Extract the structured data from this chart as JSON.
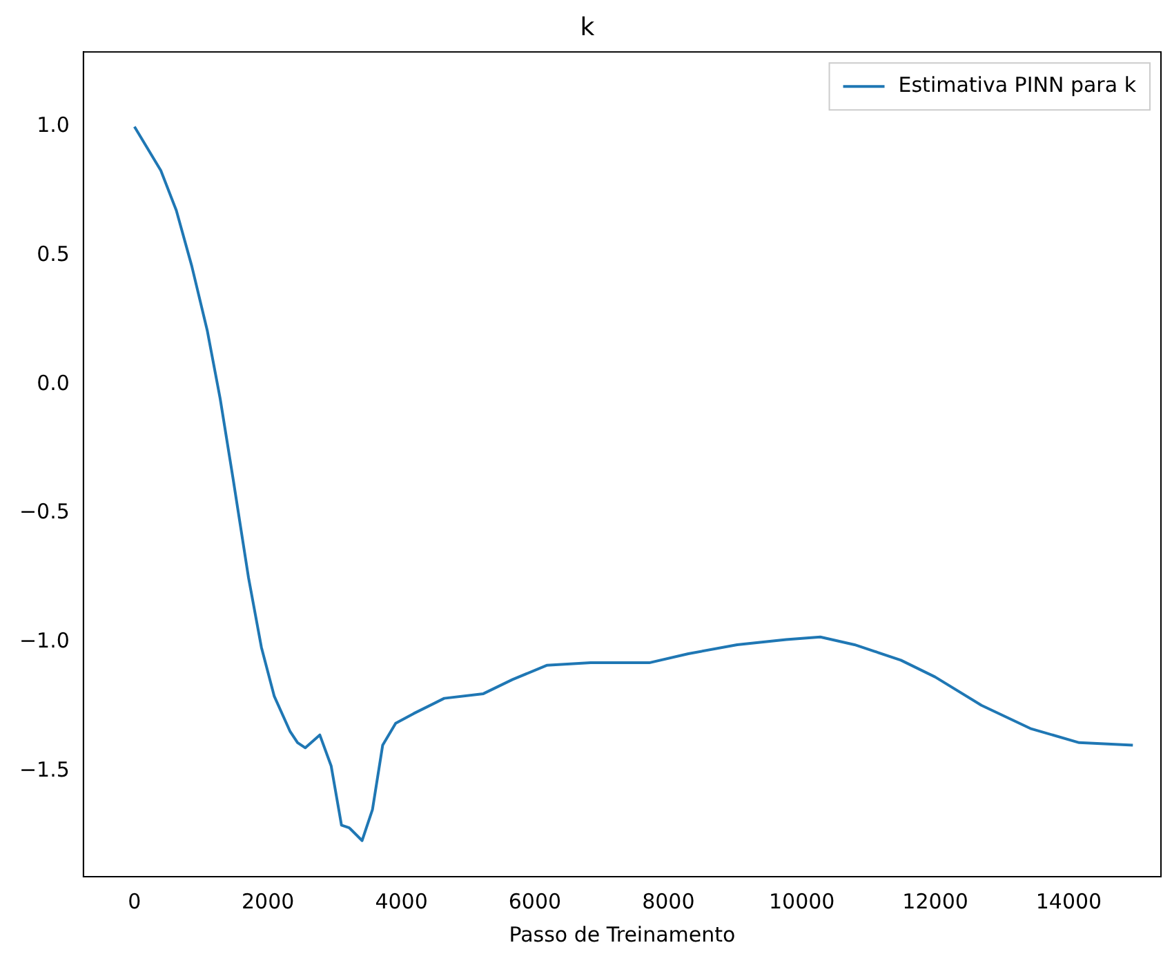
{
  "chart_data": {
    "type": "line",
    "title": "k",
    "xlabel": "Passo de Treinamento",
    "x": [
      0,
      395,
      627,
      858,
      1090,
      1284,
      1477,
      1709,
      1902,
      2095,
      2329,
      2444,
      2560,
      2777,
      2947,
      3102,
      3217,
      3411,
      3566,
      3719,
      3914,
      4184,
      4548,
      4641,
      5228,
      5665,
      6177,
      6836,
      7714,
      8300,
      9031,
      9765,
      10277,
      10789,
      11082,
      11484,
      11996,
      12691,
      13424,
      14155,
      14960
    ],
    "series": [
      {
        "name": "Estimativa PINN para k",
        "color": "#1f77b4",
        "values": [
          1.0,
          0.83,
          0.675,
          0.46,
          0.21,
          -0.055,
          -0.365,
          -0.75,
          -1.02,
          -1.21,
          -1.345,
          -1.39,
          -1.41,
          -1.36,
          -1.48,
          -1.71,
          -1.72,
          -1.77,
          -1.65,
          -1.4,
          -1.315,
          -1.277,
          -1.23,
          -1.218,
          -1.2,
          -1.145,
          -1.09,
          -1.08,
          -1.08,
          -1.045,
          -1.01,
          -0.99,
          -0.98,
          -1.01,
          -1.035,
          -1.07,
          -1.135,
          -1.245,
          -1.335,
          -1.39,
          -1.4
        ]
      }
    ],
    "xlim": [
      -765,
      15381
    ],
    "ylim": [
      -1.91,
      1.29
    ],
    "xticks": [
      0,
      2000,
      4000,
      6000,
      8000,
      10000,
      12000,
      14000
    ],
    "yticks": [
      {
        "value": -1.5,
        "label": "−1.5"
      },
      {
        "value": -1,
        "label": "−1.0"
      },
      {
        "value": -0.5,
        "label": "−0.5"
      },
      {
        "value": 0,
        "label": "0.0"
      },
      {
        "value": 0.5,
        "label": "0.5"
      },
      {
        "value": 1,
        "label": "1.0"
      }
    ],
    "grid": false,
    "legend": "top right",
    "marker": "none",
    "line_style": "solid"
  }
}
